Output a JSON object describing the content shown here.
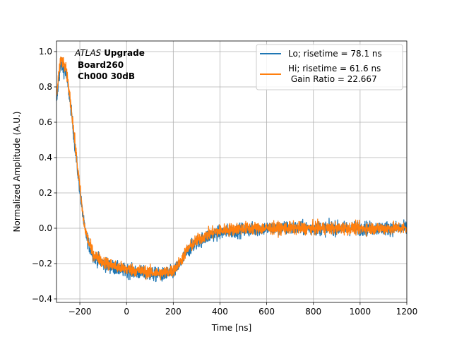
{
  "chart_data": {
    "type": "line",
    "xlabel": "Time [ns]",
    "ylabel": "Normalized Amplitude (A.U.)",
    "xlim": [
      -300,
      1200
    ],
    "ylim": [
      -0.42,
      1.06
    ],
    "xticks": [
      -200,
      0,
      200,
      400,
      600,
      800,
      1000,
      1200
    ],
    "yticks": [
      -0.4,
      -0.2,
      0.0,
      0.2,
      0.4,
      0.6,
      0.8,
      1.0
    ],
    "xtick_labels": [
      "−200",
      "0",
      "200",
      "400",
      "600",
      "800",
      "1000",
      "1200"
    ],
    "ytick_labels": [
      "−0.4",
      "−0.2",
      "0.0",
      "0.2",
      "0.4",
      "0.6",
      "0.8",
      "1.0"
    ],
    "grid": true,
    "legend_position": "top-right",
    "annotation": {
      "line1_italic": "ATLAS",
      "line1_bold": "Upgrade",
      "line2": "Board260",
      "line3": "Ch000 30dB"
    },
    "series": [
      {
        "name": "Lo; risetime = 78.1 ns",
        "color": "#1f77b4",
        "noise": 0.028,
        "x": [
          -300,
          -290,
          -280,
          -270,
          -260,
          -250,
          -240,
          -230,
          -220,
          -210,
          -200,
          -190,
          -180,
          -170,
          -160,
          -150,
          -140,
          -120,
          -100,
          -80,
          -60,
          -40,
          -20,
          0,
          50,
          100,
          150,
          200,
          230,
          260,
          300,
          340,
          380,
          420,
          500,
          600,
          700,
          800,
          900,
          1000,
          1100,
          1200
        ],
        "y": [
          0.7,
          0.85,
          0.93,
          0.9,
          0.88,
          0.8,
          0.7,
          0.58,
          0.45,
          0.33,
          0.22,
          0.1,
          0.0,
          -0.05,
          -0.1,
          -0.13,
          -0.16,
          -0.18,
          -0.2,
          -0.21,
          -0.22,
          -0.23,
          -0.235,
          -0.24,
          -0.25,
          -0.26,
          -0.265,
          -0.25,
          -0.2,
          -0.13,
          -0.08,
          -0.05,
          -0.03,
          -0.02,
          -0.01,
          0.0,
          0.0,
          0.0,
          0.0,
          0.0,
          0.0,
          0.0
        ]
      },
      {
        "name": "Hi; risetime = 61.6 ns\n Gain Ratio = 22.667",
        "color": "#ff7f0e",
        "noise": 0.025,
        "x": [
          -300,
          -290,
          -280,
          -270,
          -260,
          -250,
          -240,
          -230,
          -220,
          -210,
          -200,
          -190,
          -180,
          -170,
          -160,
          -150,
          -140,
          -120,
          -100,
          -80,
          -60,
          -40,
          -20,
          0,
          50,
          100,
          150,
          200,
          230,
          260,
          300,
          340,
          380,
          420,
          500,
          600,
          700,
          800,
          900,
          1000,
          1100,
          1200
        ],
        "y": [
          0.75,
          0.88,
          0.96,
          0.93,
          0.9,
          0.82,
          0.72,
          0.6,
          0.47,
          0.35,
          0.23,
          0.11,
          0.01,
          -0.04,
          -0.09,
          -0.12,
          -0.15,
          -0.17,
          -0.19,
          -0.2,
          -0.21,
          -0.22,
          -0.225,
          -0.23,
          -0.24,
          -0.25,
          -0.255,
          -0.24,
          -0.19,
          -0.12,
          -0.07,
          -0.04,
          -0.02,
          -0.01,
          0.0,
          0.0,
          0.0,
          0.0,
          0.0,
          0.0,
          0.0,
          0.0
        ]
      }
    ]
  }
}
